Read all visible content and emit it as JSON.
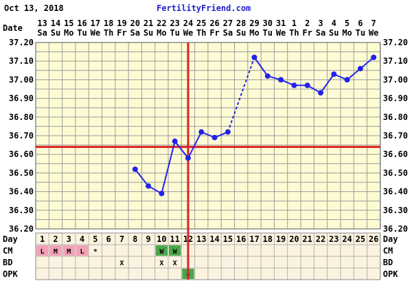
{
  "header": {
    "date": "Oct 13, 2018",
    "site": "FertilityFriend.com"
  },
  "colors": {
    "grid_bg": "#fdfbd3",
    "grid_line": "#9a9a9a",
    "table_bg": "#fbf3df",
    "temp_line": "#2222ee",
    "marker": "#dd2222",
    "menses": "#f2a0b6",
    "cm_w": "#4aa64a",
    "opk_pos": "#4aa64a"
  },
  "labels": {
    "date_row": "Date",
    "day_row": "Day",
    "cm_row": "CM",
    "bd_row": "BD",
    "opk_row": "OPK"
  },
  "chart_data": {
    "type": "line",
    "dates": [
      "13",
      "14",
      "15",
      "16",
      "17",
      "18",
      "19",
      "20",
      "21",
      "22",
      "23",
      "24",
      "25",
      "26",
      "27",
      "28",
      "29",
      "30",
      "31",
      "1",
      "2",
      "3",
      "4",
      "5",
      "6",
      "7"
    ],
    "weekdays": [
      "Sa",
      "Su",
      "Mo",
      "Tu",
      "We",
      "Th",
      "Fr",
      "Sa",
      "Su",
      "Mo",
      "Tu",
      "We",
      "Th",
      "Fr",
      "Sa",
      "Su",
      "Mo",
      "Tu",
      "We",
      "Th",
      "Fr",
      "Sa",
      "Su",
      "Mo",
      "Tu",
      "We"
    ],
    "days": [
      "1",
      "2",
      "3",
      "4",
      "5",
      "6",
      "7",
      "8",
      "9",
      "10",
      "11",
      "12",
      "13",
      "14",
      "15",
      "16",
      "17",
      "18",
      "19",
      "20",
      "21",
      "22",
      "23",
      "24",
      "25",
      "26"
    ],
    "ylim": [
      36.2,
      37.2
    ],
    "yticks": [
      "37.20",
      "37.10",
      "37.00",
      "36.90",
      "36.80",
      "36.70",
      "36.60",
      "36.50",
      "36.40",
      "36.30",
      "36.20"
    ],
    "temps": [
      null,
      null,
      null,
      null,
      null,
      null,
      null,
      36.52,
      36.43,
      36.39,
      36.67,
      36.58,
      36.72,
      36.69,
      36.72,
      null,
      37.12,
      37.02,
      37.0,
      36.97,
      36.97,
      36.93,
      37.03,
      37.0,
      37.06,
      37.12
    ],
    "coverline": 36.64,
    "ovulation_day": "12",
    "cm": [
      "L",
      "M",
      "M",
      "L",
      "*",
      "",
      "",
      "",
      "",
      "W",
      "W",
      "",
      "",
      "",
      "",
      "",
      "",
      "",
      "",
      "",
      "",
      "",
      "",
      "",
      "",
      ""
    ],
    "bd": [
      "",
      "",
      "",
      "",
      "",
      "",
      "X",
      "",
      "",
      "X",
      "X",
      "",
      "",
      "",
      "",
      "",
      "",
      "",
      "",
      "",
      "",
      "",
      "",
      "",
      "",
      ""
    ],
    "opk": [
      "",
      "",
      "",
      "",
      "",
      "",
      "",
      "",
      "",
      "",
      "",
      "+",
      "",
      "",
      "",
      "",
      "",
      "",
      "",
      "",
      "",
      "",
      "",
      "",
      "",
      ""
    ]
  }
}
